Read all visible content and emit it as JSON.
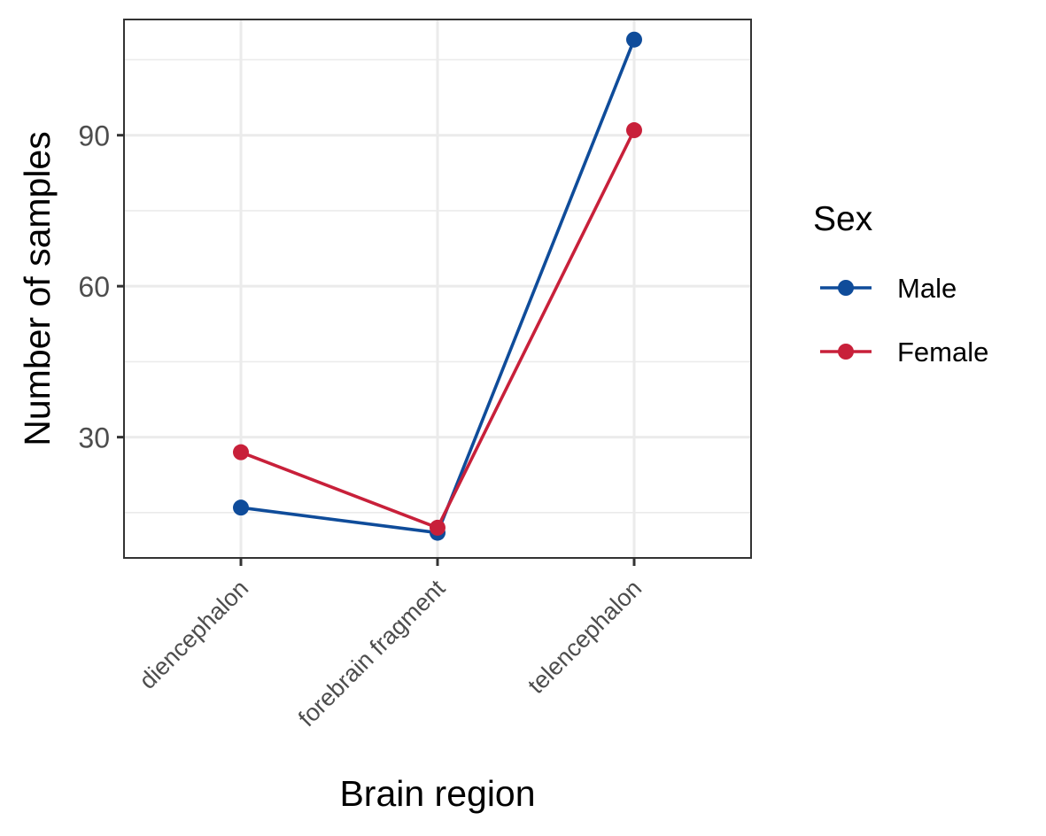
{
  "chart_data": {
    "type": "line",
    "title": "",
    "xlabel": "Brain region",
    "ylabel": "Number of samples",
    "categories": [
      "diencephalon",
      "forebrain fragment",
      "telencephalon"
    ],
    "ylim": [
      6,
      113
    ],
    "yticks": [
      30,
      60,
      90
    ],
    "yticks_minor": [
      15,
      45,
      75,
      105
    ],
    "grid": true,
    "legend": {
      "title": "Sex",
      "placement": "right"
    },
    "series": [
      {
        "name": "Male",
        "color": "#0f4c9a",
        "values": [
          16,
          11,
          109
        ]
      },
      {
        "name": "Female",
        "color": "#c8203a",
        "values": [
          27,
          12,
          91
        ]
      }
    ]
  }
}
